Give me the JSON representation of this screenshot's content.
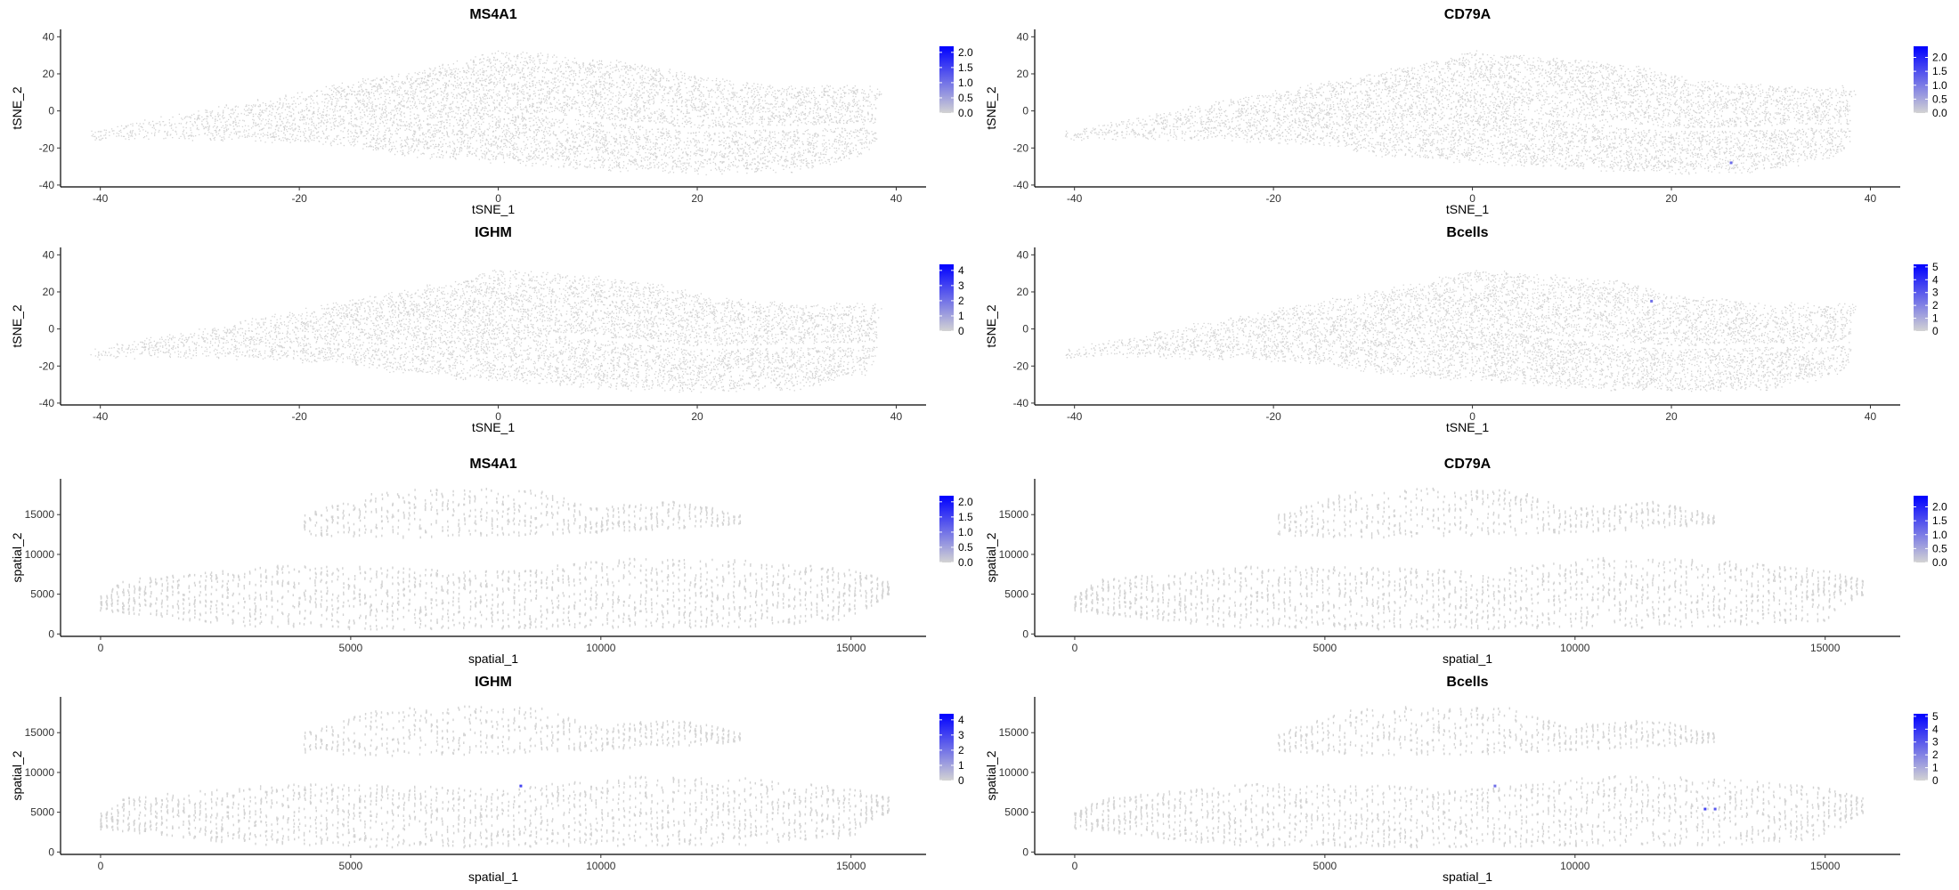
{
  "chart_data": [
    {
      "type": "scatter",
      "title": "MS4A1",
      "xlabel": "tSNE_1",
      "ylabel": "tSNE_2",
      "xlim": [
        -44,
        43
      ],
      "ylim": [
        -41,
        44
      ],
      "xticks": [
        -40,
        -20,
        0,
        20,
        40
      ],
      "yticks": [
        -40,
        -20,
        0,
        20,
        40
      ],
      "embedding": "tsne",
      "color_scale": {
        "low": "#d3d3d3",
        "high": "#0000ff",
        "min": 0,
        "max": 2.2,
        "ticks": [
          "0.0",
          "0.5",
          "1.0",
          "1.5",
          "2.0"
        ]
      },
      "highlights": []
    },
    {
      "type": "scatter",
      "title": "CD79A",
      "xlabel": "tSNE_1",
      "ylabel": "tSNE_2",
      "xlim": [
        -44,
        43
      ],
      "ylim": [
        -41,
        44
      ],
      "xticks": [
        -40,
        -20,
        0,
        20,
        40
      ],
      "yticks": [
        -40,
        -20,
        0,
        20,
        40
      ],
      "embedding": "tsne",
      "color_scale": {
        "low": "#d3d3d3",
        "high": "#0000ff",
        "min": 0,
        "max": 2.4,
        "ticks": [
          "0.0",
          "0.5",
          "1.0",
          "1.5",
          "2.0"
        ]
      },
      "highlights": [
        {
          "x": 26,
          "y": -28,
          "value": 1.2
        }
      ]
    },
    {
      "type": "scatter",
      "title": "IGHM",
      "xlabel": "tSNE_1",
      "ylabel": "tSNE_2",
      "xlim": [
        -44,
        43
      ],
      "ylim": [
        -41,
        44
      ],
      "xticks": [
        -40,
        -20,
        0,
        20,
        40
      ],
      "yticks": [
        -40,
        -20,
        0,
        20,
        40
      ],
      "embedding": "tsne",
      "color_scale": {
        "low": "#d3d3d3",
        "high": "#0000ff",
        "min": 0,
        "max": 4.4,
        "ticks": [
          "0",
          "1",
          "2",
          "3",
          "4"
        ]
      },
      "highlights": []
    },
    {
      "type": "scatter",
      "title": "Bcells",
      "xlabel": "tSNE_1",
      "ylabel": "tSNE_2",
      "xlim": [
        -44,
        43
      ],
      "ylim": [
        -41,
        44
      ],
      "xticks": [
        -40,
        -20,
        0,
        20,
        40
      ],
      "yticks": [
        -40,
        -20,
        0,
        20,
        40
      ],
      "embedding": "tsne",
      "color_scale": {
        "low": "#d3d3d3",
        "high": "#0000ff",
        "min": 0,
        "max": 5.2,
        "ticks": [
          "0",
          "1",
          "2",
          "3",
          "4",
          "5"
        ]
      },
      "highlights": [
        {
          "x": 18,
          "y": 15,
          "value": 2.5
        }
      ]
    },
    {
      "type": "scatter",
      "title": "MS4A1",
      "xlabel": "spatial_1",
      "ylabel": "spatial_2",
      "xlim": [
        -800,
        16500
      ],
      "ylim": [
        -300,
        19500
      ],
      "xticks": [
        0,
        5000,
        10000,
        15000
      ],
      "yticks": [
        0,
        5000,
        10000,
        15000
      ],
      "embedding": "spatial",
      "color_scale": {
        "low": "#d3d3d3",
        "high": "#0000ff",
        "min": 0,
        "max": 2.2,
        "ticks": [
          "0.0",
          "0.5",
          "1.0",
          "1.5",
          "2.0"
        ]
      },
      "highlights": []
    },
    {
      "type": "scatter",
      "title": "CD79A",
      "xlabel": "spatial_1",
      "ylabel": "spatial_2",
      "xlim": [
        -800,
        16500
      ],
      "ylim": [
        -300,
        19500
      ],
      "xticks": [
        0,
        5000,
        10000,
        15000
      ],
      "yticks": [
        0,
        5000,
        10000,
        15000
      ],
      "embedding": "spatial",
      "color_scale": {
        "low": "#d3d3d3",
        "high": "#0000ff",
        "min": 0,
        "max": 2.4,
        "ticks": [
          "0.0",
          "0.5",
          "1.0",
          "1.5",
          "2.0"
        ]
      },
      "highlights": []
    },
    {
      "type": "scatter",
      "title": "IGHM",
      "xlabel": "spatial_1",
      "ylabel": "spatial_2",
      "xlim": [
        -800,
        16500
      ],
      "ylim": [
        -300,
        19500
      ],
      "xticks": [
        0,
        5000,
        10000,
        15000
      ],
      "yticks": [
        0,
        5000,
        10000,
        15000
      ],
      "embedding": "spatial",
      "color_scale": {
        "low": "#d3d3d3",
        "high": "#0000ff",
        "min": 0,
        "max": 4.4,
        "ticks": [
          "0",
          "1",
          "2",
          "3",
          "4"
        ]
      },
      "highlights": [
        {
          "x": 8400,
          "y": 8300,
          "value": 3.0
        }
      ]
    },
    {
      "type": "scatter",
      "title": "Bcells",
      "xlabel": "spatial_1",
      "ylabel": "spatial_2",
      "xlim": [
        -800,
        16500
      ],
      "ylim": [
        -300,
        19500
      ],
      "xticks": [
        0,
        5000,
        10000,
        15000
      ],
      "yticks": [
        0,
        5000,
        10000,
        15000
      ],
      "embedding": "spatial",
      "color_scale": {
        "low": "#d3d3d3",
        "high": "#0000ff",
        "min": 0,
        "max": 5.2,
        "ticks": [
          "0",
          "1",
          "2",
          "3",
          "4",
          "5"
        ]
      },
      "highlights": [
        {
          "x": 8400,
          "y": 8300,
          "value": 2.5
        },
        {
          "x": 12600,
          "y": 5400,
          "value": 3.5
        },
        {
          "x": 12800,
          "y": 5400,
          "value": 3.0
        }
      ]
    }
  ]
}
